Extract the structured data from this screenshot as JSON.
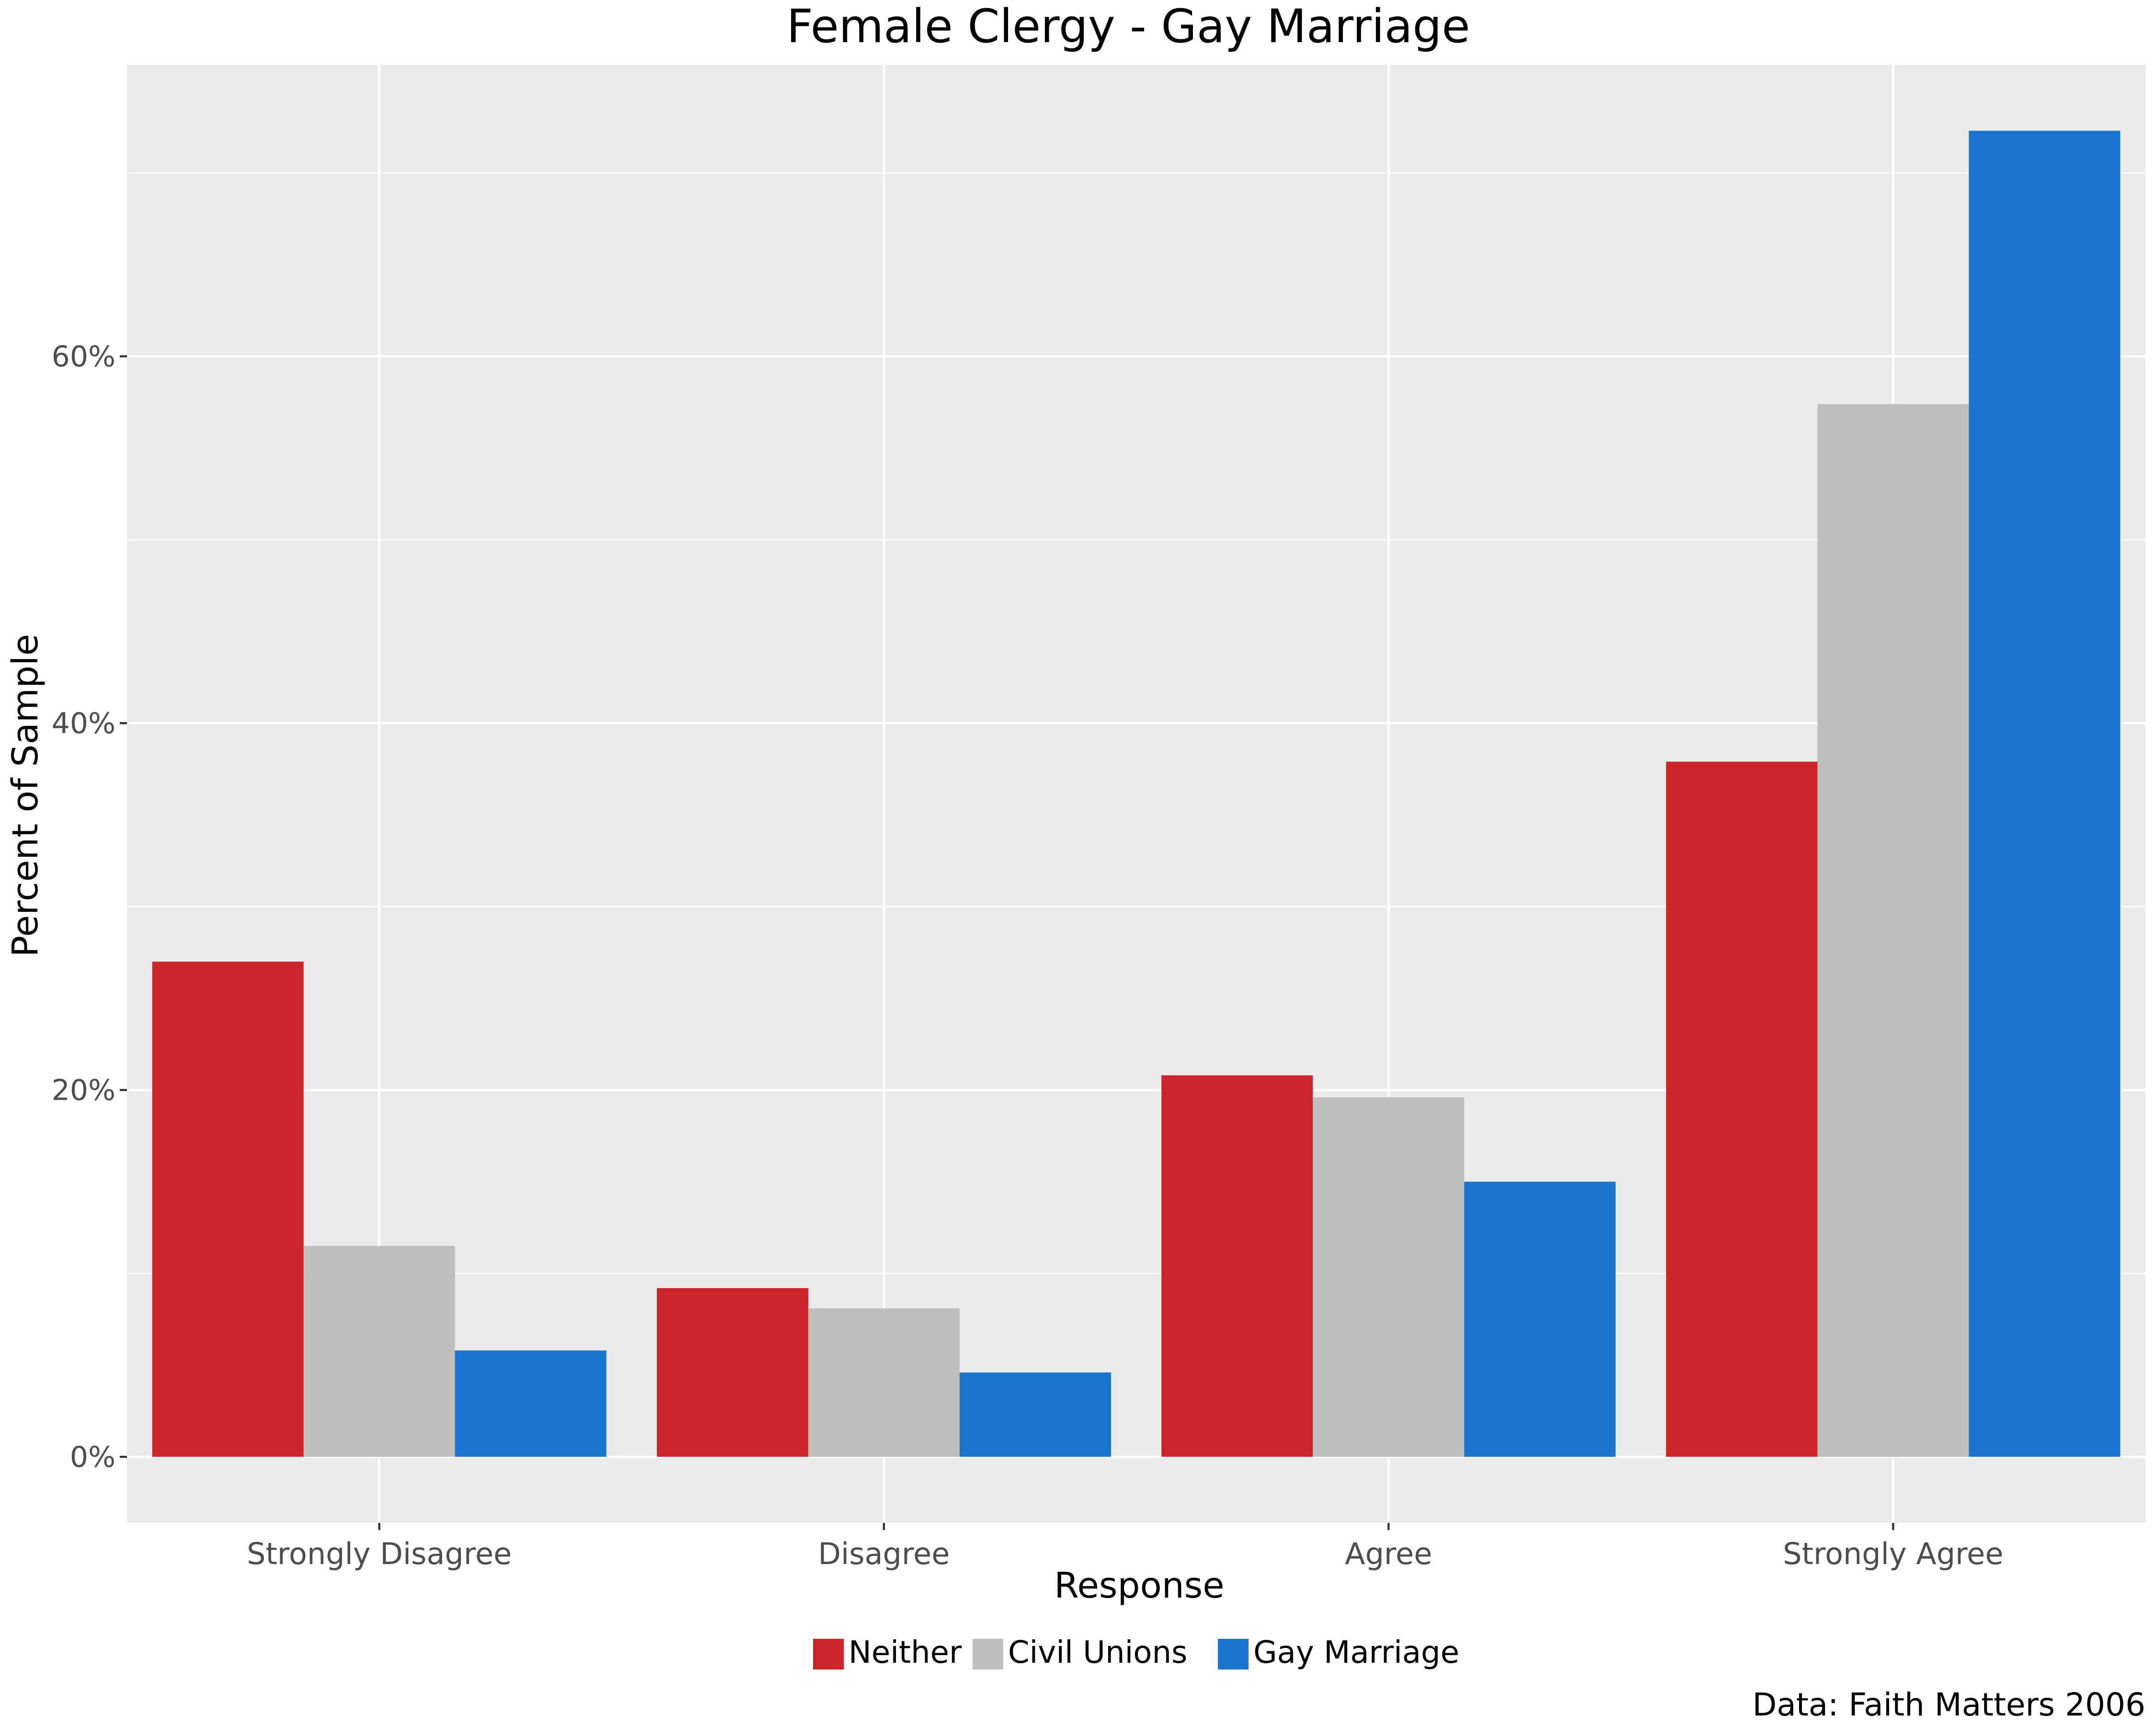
{
  "chart_data": {
    "type": "bar",
    "title": "Female Clergy - Gay Marriage",
    "xlabel": "Response",
    "ylabel": "Percent of Sample",
    "categories": [
      "Strongly Disagree",
      "Disagree",
      "Agree",
      "Strongly Agree"
    ],
    "series": [
      {
        "name": "Neither",
        "color": "#CC2529",
        "values": [
          27.0,
          9.2,
          20.8,
          37.9
        ]
      },
      {
        "name": "Civil Unions",
        "color": "#BEBEBE",
        "values": [
          11.5,
          8.1,
          19.6,
          57.4
        ]
      },
      {
        "name": "Gay Marriage",
        "color": "#1A75CF",
        "values": [
          5.8,
          4.6,
          15.0,
          72.3
        ]
      }
    ],
    "ylim": [
      -3.6,
      75.9
    ],
    "yticks": [
      0,
      20,
      40,
      60
    ],
    "ytick_labels": [
      "0%",
      "20%",
      "40%",
      "60%"
    ],
    "grid": true,
    "legend_position": "bottom",
    "caption": "Data: Faith Matters 2006"
  }
}
